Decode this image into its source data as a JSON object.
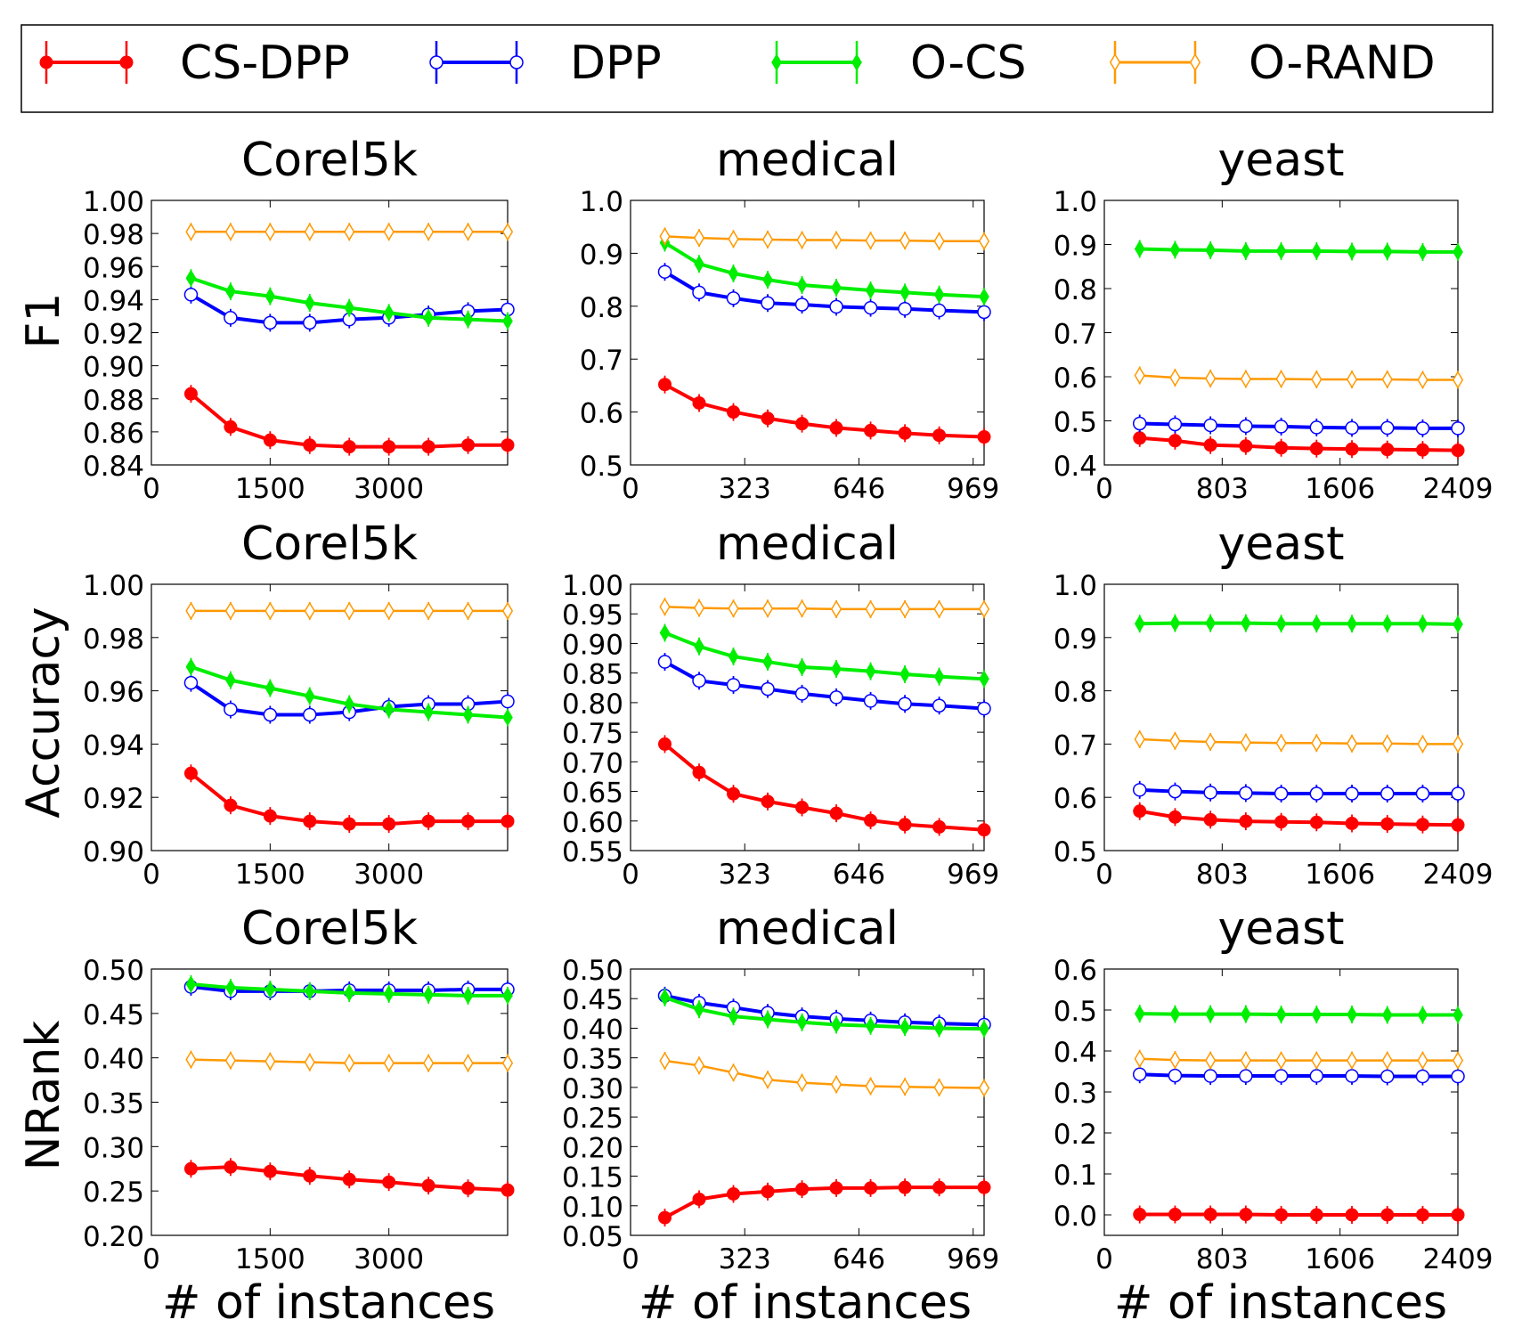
{
  "legend": {
    "entries": [
      {
        "key": "csdpp",
        "label": "CS-DPP",
        "color": "#ff0000",
        "marker": "filled-circle"
      },
      {
        "key": "dpp",
        "label": "DPP",
        "color": "#0000ff",
        "marker": "hollow-circle"
      },
      {
        "key": "ocs",
        "label": "O-CS",
        "color": "#00ee00",
        "marker": "filled-diamond"
      },
      {
        "key": "orand",
        "label": "O-RAND",
        "color": "#ff9900",
        "marker": "hollow-diamond"
      }
    ]
  },
  "xlabel": "# of instances",
  "row_labels": [
    "F1",
    "Accuracy",
    "NRank"
  ],
  "chart_data": [
    {
      "type": "line",
      "title": "Corel5k",
      "ylabel": "F1",
      "xlim": [
        0,
        4500
      ],
      "xticks": [
        "0",
        "1500",
        "3000"
      ],
      "xtick_values": [
        0,
        1500,
        3000
      ],
      "ylim": [
        0.84,
        1.0
      ],
      "yticks": [
        "0.84",
        "0.86",
        "0.88",
        "0.90",
        "0.92",
        "0.94",
        "0.96",
        "0.98",
        "1.00"
      ],
      "x": [
        500,
        1000,
        1500,
        2000,
        2500,
        3000,
        3500,
        4000,
        4500
      ],
      "series": [
        {
          "name": "CS-DPP",
          "values": [
            0.883,
            0.863,
            0.855,
            0.852,
            0.851,
            0.851,
            0.851,
            0.852,
            0.852
          ]
        },
        {
          "name": "DPP",
          "values": [
            0.943,
            0.929,
            0.926,
            0.926,
            0.928,
            0.929,
            0.931,
            0.933,
            0.934
          ]
        },
        {
          "name": "O-CS",
          "values": [
            0.953,
            0.945,
            0.942,
            0.938,
            0.935,
            0.932,
            0.929,
            0.928,
            0.927
          ]
        },
        {
          "name": "O-RAND",
          "values": [
            0.981,
            0.981,
            0.981,
            0.981,
            0.981,
            0.981,
            0.981,
            0.981,
            0.981
          ]
        }
      ]
    },
    {
      "type": "line",
      "title": "medical",
      "ylabel": "",
      "xlim": [
        0,
        1000
      ],
      "xticks": [
        "0",
        "323",
        "646",
        "969"
      ],
      "xtick_values": [
        0,
        323,
        646,
        969
      ],
      "ylim": [
        0.5,
        1.0
      ],
      "yticks": [
        "0.5",
        "0.6",
        "0.7",
        "0.8",
        "0.9",
        "1.0"
      ],
      "x": [
        97,
        194,
        291,
        388,
        485,
        582,
        679,
        776,
        873,
        1000
      ],
      "series": [
        {
          "name": "CS-DPP",
          "values": [
            0.652,
            0.617,
            0.6,
            0.588,
            0.578,
            0.57,
            0.565,
            0.56,
            0.556,
            0.553
          ]
        },
        {
          "name": "DPP",
          "values": [
            0.865,
            0.826,
            0.815,
            0.806,
            0.803,
            0.799,
            0.797,
            0.795,
            0.792,
            0.789
          ]
        },
        {
          "name": "O-CS",
          "values": [
            0.92,
            0.88,
            0.862,
            0.85,
            0.84,
            0.835,
            0.83,
            0.826,
            0.822,
            0.818
          ]
        },
        {
          "name": "O-RAND",
          "values": [
            0.932,
            0.929,
            0.927,
            0.926,
            0.925,
            0.925,
            0.924,
            0.924,
            0.923,
            0.923
          ]
        }
      ]
    },
    {
      "type": "line",
      "title": "yeast",
      "ylabel": "",
      "xlim": [
        0,
        2409
      ],
      "xticks": [
        "0",
        "803",
        "1606",
        "2409"
      ],
      "xtick_values": [
        0,
        803,
        1606,
        2409
      ],
      "ylim": [
        0.4,
        1.0
      ],
      "yticks": [
        "0.4",
        "0.5",
        "0.6",
        "0.7",
        "0.8",
        "0.9",
        "1.0"
      ],
      "x": [
        241,
        482,
        723,
        964,
        1205,
        1446,
        1687,
        1928,
        2169,
        2409
      ],
      "series": [
        {
          "name": "CS-DPP",
          "values": [
            0.461,
            0.455,
            0.445,
            0.443,
            0.439,
            0.437,
            0.436,
            0.435,
            0.434,
            0.433
          ]
        },
        {
          "name": "DPP",
          "values": [
            0.494,
            0.492,
            0.49,
            0.488,
            0.487,
            0.485,
            0.484,
            0.484,
            0.483,
            0.483
          ]
        },
        {
          "name": "O-CS",
          "values": [
            0.89,
            0.888,
            0.887,
            0.885,
            0.885,
            0.885,
            0.884,
            0.884,
            0.883,
            0.883
          ]
        },
        {
          "name": "O-RAND",
          "values": [
            0.603,
            0.598,
            0.596,
            0.595,
            0.595,
            0.594,
            0.594,
            0.594,
            0.593,
            0.593
          ]
        }
      ]
    },
    {
      "type": "line",
      "title": "Corel5k",
      "ylabel": "Accuracy",
      "xlim": [
        0,
        4500
      ],
      "xticks": [
        "0",
        "1500",
        "3000"
      ],
      "xtick_values": [
        0,
        1500,
        3000
      ],
      "ylim": [
        0.9,
        1.0
      ],
      "yticks": [
        "0.90",
        "0.92",
        "0.94",
        "0.96",
        "0.98",
        "1.00"
      ],
      "x": [
        500,
        1000,
        1500,
        2000,
        2500,
        3000,
        3500,
        4000,
        4500
      ],
      "series": [
        {
          "name": "CS-DPP",
          "values": [
            0.929,
            0.917,
            0.913,
            0.911,
            0.91,
            0.91,
            0.911,
            0.911,
            0.911
          ]
        },
        {
          "name": "DPP",
          "values": [
            0.963,
            0.953,
            0.951,
            0.951,
            0.952,
            0.954,
            0.955,
            0.955,
            0.956
          ]
        },
        {
          "name": "O-CS",
          "values": [
            0.969,
            0.964,
            0.961,
            0.958,
            0.955,
            0.953,
            0.952,
            0.951,
            0.95
          ]
        },
        {
          "name": "O-RAND",
          "values": [
            0.99,
            0.99,
            0.99,
            0.99,
            0.99,
            0.99,
            0.99,
            0.99,
            0.99
          ]
        }
      ]
    },
    {
      "type": "line",
      "title": "medical",
      "ylabel": "",
      "xlim": [
        0,
        1000
      ],
      "xticks": [
        "0",
        "323",
        "646",
        "969"
      ],
      "xtick_values": [
        0,
        323,
        646,
        969
      ],
      "ylim": [
        0.55,
        1.0
      ],
      "yticks": [
        "0.55",
        "0.60",
        "0.65",
        "0.70",
        "0.75",
        "0.80",
        "0.85",
        "0.90",
        "0.95",
        "1.00"
      ],
      "x": [
        97,
        194,
        291,
        388,
        485,
        582,
        679,
        776,
        873,
        1000
      ],
      "series": [
        {
          "name": "CS-DPP",
          "values": [
            0.73,
            0.682,
            0.646,
            0.633,
            0.623,
            0.613,
            0.601,
            0.594,
            0.59,
            0.585
          ]
        },
        {
          "name": "DPP",
          "values": [
            0.869,
            0.837,
            0.83,
            0.823,
            0.815,
            0.809,
            0.803,
            0.798,
            0.795,
            0.79
          ]
        },
        {
          "name": "O-CS",
          "values": [
            0.918,
            0.895,
            0.878,
            0.869,
            0.86,
            0.857,
            0.853,
            0.848,
            0.844,
            0.84
          ]
        },
        {
          "name": "O-RAND",
          "values": [
            0.962,
            0.96,
            0.959,
            0.959,
            0.959,
            0.958,
            0.958,
            0.958,
            0.958,
            0.958
          ]
        }
      ]
    },
    {
      "type": "line",
      "title": "yeast",
      "ylabel": "",
      "xlim": [
        0,
        2409
      ],
      "xticks": [
        "0",
        "803",
        "1606",
        "2409"
      ],
      "xtick_values": [
        0,
        803,
        1606,
        2409
      ],
      "ylim": [
        0.5,
        1.0
      ],
      "yticks": [
        "0.5",
        "0.6",
        "0.7",
        "0.8",
        "0.9",
        "1.0"
      ],
      "x": [
        241,
        482,
        723,
        964,
        1205,
        1446,
        1687,
        1928,
        2169,
        2409
      ],
      "series": [
        {
          "name": "CS-DPP",
          "values": [
            0.574,
            0.563,
            0.558,
            0.555,
            0.554,
            0.553,
            0.551,
            0.55,
            0.549,
            0.548
          ]
        },
        {
          "name": "DPP",
          "values": [
            0.614,
            0.611,
            0.609,
            0.608,
            0.607,
            0.607,
            0.607,
            0.607,
            0.607,
            0.607
          ]
        },
        {
          "name": "O-CS",
          "values": [
            0.926,
            0.927,
            0.927,
            0.927,
            0.926,
            0.926,
            0.926,
            0.926,
            0.926,
            0.925
          ]
        },
        {
          "name": "O-RAND",
          "values": [
            0.709,
            0.706,
            0.704,
            0.703,
            0.702,
            0.702,
            0.701,
            0.701,
            0.7,
            0.7
          ]
        }
      ]
    },
    {
      "type": "line",
      "title": "Corel5k",
      "ylabel": "NRank",
      "xlim": [
        0,
        4500
      ],
      "xticks": [
        "0",
        "1500",
        "3000"
      ],
      "xtick_values": [
        0,
        1500,
        3000
      ],
      "ylim": [
        0.2,
        0.5
      ],
      "yticks": [
        "0.20",
        "0.25",
        "0.30",
        "0.35",
        "0.40",
        "0.45",
        "0.50"
      ],
      "x": [
        500,
        1000,
        1500,
        2000,
        2500,
        3000,
        3500,
        4000,
        4500
      ],
      "series": [
        {
          "name": "CS-DPP",
          "values": [
            0.275,
            0.277,
            0.272,
            0.267,
            0.263,
            0.26,
            0.256,
            0.253,
            0.251
          ]
        },
        {
          "name": "DPP",
          "values": [
            0.48,
            0.475,
            0.475,
            0.475,
            0.476,
            0.476,
            0.476,
            0.477,
            0.477
          ]
        },
        {
          "name": "O-CS",
          "values": [
            0.483,
            0.479,
            0.477,
            0.475,
            0.473,
            0.472,
            0.471,
            0.47,
            0.47
          ]
        },
        {
          "name": "O-RAND",
          "values": [
            0.398,
            0.397,
            0.396,
            0.395,
            0.394,
            0.394,
            0.394,
            0.394,
            0.394
          ]
        }
      ]
    },
    {
      "type": "line",
      "title": "medical",
      "ylabel": "",
      "xlim": [
        0,
        1000
      ],
      "xticks": [
        "0",
        "323",
        "646",
        "969"
      ],
      "xtick_values": [
        0,
        323,
        646,
        969
      ],
      "ylim": [
        0.05,
        0.5
      ],
      "yticks": [
        "0.05",
        "0.10",
        "0.15",
        "0.20",
        "0.25",
        "0.30",
        "0.35",
        "0.40",
        "0.45",
        "0.50"
      ],
      "x": [
        97,
        194,
        291,
        388,
        485,
        582,
        679,
        776,
        873,
        1000
      ],
      "series": [
        {
          "name": "CS-DPP",
          "values": [
            0.08,
            0.111,
            0.12,
            0.124,
            0.128,
            0.13,
            0.13,
            0.131,
            0.131,
            0.131
          ]
        },
        {
          "name": "DPP",
          "values": [
            0.455,
            0.443,
            0.435,
            0.426,
            0.42,
            0.416,
            0.413,
            0.41,
            0.408,
            0.406
          ]
        },
        {
          "name": "O-CS",
          "values": [
            0.452,
            0.432,
            0.42,
            0.415,
            0.41,
            0.406,
            0.404,
            0.402,
            0.4,
            0.399
          ]
        },
        {
          "name": "O-RAND",
          "values": [
            0.345,
            0.337,
            0.325,
            0.313,
            0.308,
            0.305,
            0.302,
            0.301,
            0.3,
            0.299
          ]
        }
      ]
    },
    {
      "type": "line",
      "title": "yeast",
      "ylabel": "",
      "xlim": [
        0,
        2409
      ],
      "xticks": [
        "0",
        "803",
        "1606",
        "2409"
      ],
      "xtick_values": [
        0,
        803,
        1606,
        2409
      ],
      "ylim": [
        -0.05,
        0.6
      ],
      "yticks": [
        "0.0",
        "0.1",
        "0.2",
        "0.3",
        "0.4",
        "0.5",
        "0.6"
      ],
      "ytick_values": [
        0.0,
        0.1,
        0.2,
        0.3,
        0.4,
        0.5,
        0.6
      ],
      "x": [
        241,
        482,
        723,
        964,
        1205,
        1446,
        1687,
        1928,
        2169,
        2409
      ],
      "series": [
        {
          "name": "CS-DPP",
          "values": [
            0.001,
            0.001,
            0.001,
            0.001,
            0.0,
            0.0,
            0.0,
            0.0,
            0.0,
            0.0
          ]
        },
        {
          "name": "DPP",
          "values": [
            0.343,
            0.34,
            0.339,
            0.339,
            0.339,
            0.339,
            0.339,
            0.338,
            0.338,
            0.338
          ]
        },
        {
          "name": "O-CS",
          "values": [
            0.491,
            0.49,
            0.49,
            0.49,
            0.489,
            0.489,
            0.489,
            0.488,
            0.488,
            0.488
          ]
        },
        {
          "name": "O-RAND",
          "values": [
            0.381,
            0.378,
            0.377,
            0.377,
            0.377,
            0.377,
            0.377,
            0.377,
            0.377,
            0.377
          ]
        }
      ]
    }
  ]
}
